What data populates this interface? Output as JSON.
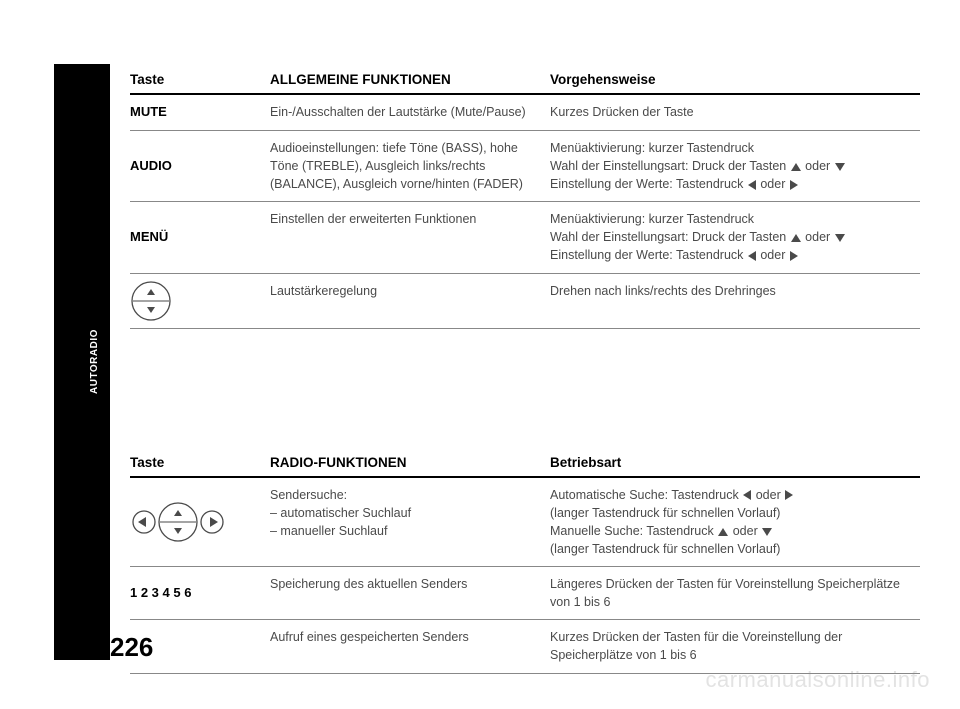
{
  "page_number": "226",
  "side_tab": "AUTORADIO",
  "watermark": "carmanualsonline.info",
  "table1": {
    "headers": [
      "Taste",
      "ALLGEMEINE FUNKTIONEN",
      "Vorgehensweise"
    ],
    "rows": [
      {
        "key": "MUTE",
        "func": "Ein-/Ausschalten der Lautstärke (Mute/Pause)",
        "mode": "Kurzes Drücken der Taste"
      },
      {
        "key": "AUDIO",
        "func": "Audioeinstellungen: tiefe Töne (BASS), hohe Töne (TREBLE), Ausgleich links/rechts (BALANCE), Ausgleich vorne/hinten (FADER)",
        "mode_lines": [
          "Menüaktivierung: kurzer Tastendruck",
          "Wahl der Einstellungsart: Druck der Tasten {up} oder {down}",
          "Einstellung der Werte: Tastendruck {left} oder {right}"
        ]
      },
      {
        "key": "MENÜ",
        "func": "Einstellen der erweiterten Funktionen",
        "mode_lines": [
          "Menüaktivierung: kurzer Tastendruck",
          "Wahl der Einstellungsart: Druck der Tasten {up} oder {down}",
          "Einstellung der Werte: Tastendruck {left} oder {right}"
        ]
      },
      {
        "key_icon": "knob_ud",
        "func": "Lautstärkeregelung",
        "mode": "Drehen nach links/rechts des Drehringes"
      }
    ]
  },
  "table2": {
    "headers": [
      "Taste",
      "RADIO-FUNKTIONEN",
      "Betriebsart"
    ],
    "rows": [
      {
        "key_icon": "knob_udlr",
        "func_lines": [
          "Sendersuche:",
          "– automatischer Suchlauf",
          "– manueller Suchlauf"
        ],
        "mode_lines": [
          "Automatische Suche: Tastendruck {left} oder {right}",
          "(langer Tastendruck für schnellen Vorlauf)",
          "Manuelle Suche: Tastendruck {up} oder {down}",
          "(langer Tastendruck für schnellen Vorlauf)"
        ]
      },
      {
        "key": "1 2 3 4 5 6",
        "func": "Speicherung des aktuellen Senders",
        "mode": "Längeres Drücken der Tasten für Voreinstellung Speicherplätze von 1 bis 6"
      },
      {
        "key": "",
        "func": "Aufruf eines gespeicherten Senders",
        "mode": "Kurzes Drücken der Tasten für die Voreinstellung der Speicherplätze von 1 bis 6"
      }
    ]
  },
  "icons": {
    "knob_stroke": "#4a4a4a",
    "knob_fill": "#ffffff"
  }
}
